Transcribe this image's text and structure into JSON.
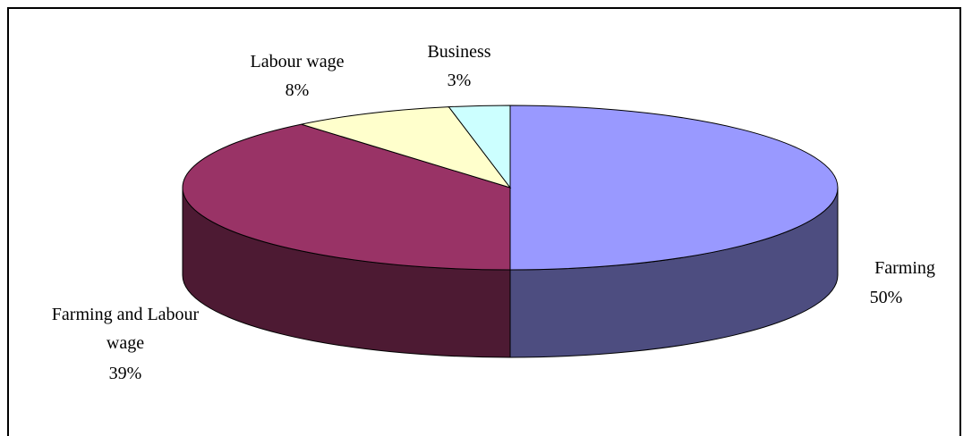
{
  "chart_data": {
    "type": "pie",
    "style": "3d",
    "title": "",
    "slices": [
      {
        "name": "Farming",
        "value": 50,
        "label_name": "Farming",
        "label_value": "50%",
        "color": "#9999ff",
        "side_color": "#4d4d80"
      },
      {
        "name": "Farming and Labour wage",
        "value": 39,
        "label_name_lines": [
          "Farming and Labour",
          "wage"
        ],
        "label_value": "39%",
        "color": "#993366",
        "side_color": "#4d1a33"
      },
      {
        "name": "Labour wage",
        "value": 8,
        "label_name": "Labour wage",
        "label_value": "8%",
        "color": "#ffffcc",
        "side_color": "#808066"
      },
      {
        "name": "Business",
        "value": 3,
        "label_name": "Business",
        "label_value": "3%",
        "color": "#ccffff",
        "side_color": "#668080"
      }
    ],
    "legend": "none"
  }
}
